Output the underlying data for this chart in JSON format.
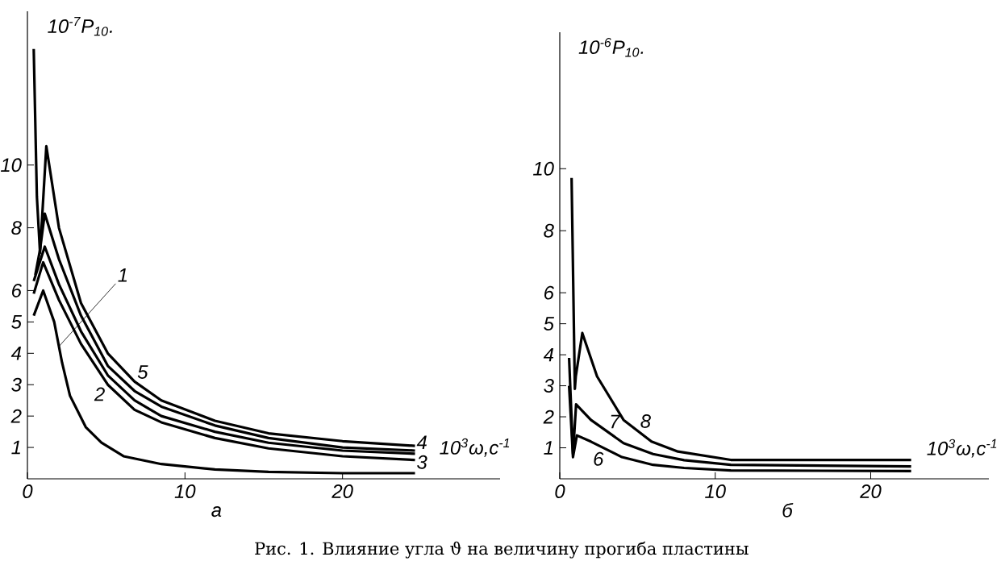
{
  "chart_data": [
    {
      "type": "line",
      "title": "а",
      "xlabel": "10$^{3}$ω,с$^{-1}$",
      "ylabel": "10$^{-7}$P$_{10}$.",
      "xlim": [
        0,
        30
      ],
      "ylim": [
        0,
        14.9
      ],
      "xticks": [
        0,
        10,
        20
      ],
      "yticks": [
        1,
        2,
        3,
        4,
        5,
        6,
        8,
        10
      ],
      "grid": false,
      "annotations": [
        "Рис. 1. Влияние угла ϑ на величину прогиба пластины"
      ],
      "series": [
        {
          "name": "1",
          "color": "#000000",
          "x": [
            0.4,
            1.0,
            1.7,
            2.2,
            2.7,
            3.7,
            4.7,
            6.1,
            8.5,
            11.9,
            15.3,
            20,
            24.6
          ],
          "values": [
            5.2,
            6.0,
            5.0,
            3.7,
            2.65,
            1.65,
            1.15,
            0.72,
            0.47,
            0.3,
            0.22,
            0.18,
            0.18
          ]
        },
        {
          "name": "2",
          "color": "#000000",
          "x": [
            0.4,
            1.0,
            2.0,
            3.4,
            5.1,
            6.8,
            8.5,
            11.9,
            15.3,
            20,
            24.6
          ],
          "values": [
            5.9,
            6.9,
            5.7,
            4.3,
            3.0,
            2.2,
            1.8,
            1.3,
            0.97,
            0.72,
            0.6
          ]
        },
        {
          "name": "3",
          "color": "#000000",
          "x": [
            0.4,
            1.1,
            2.0,
            3.4,
            5.1,
            6.8,
            8.5,
            11.9,
            15.3,
            20,
            24.6
          ],
          "values": [
            6.3,
            7.4,
            6.2,
            4.7,
            3.3,
            2.5,
            2.0,
            1.5,
            1.15,
            0.9,
            0.8
          ]
        },
        {
          "name": "4",
          "color": "#000000",
          "x": [
            0.5,
            0.8,
            1.1,
            2.0,
            3.4,
            5.1,
            6.8,
            8.5,
            11.9,
            15.3,
            20,
            24.6
          ],
          "values": [
            6.5,
            7.3,
            8.45,
            7.0,
            5.2,
            3.6,
            2.8,
            2.3,
            1.7,
            1.3,
            1.0,
            0.9
          ]
        },
        {
          "name": "5",
          "color": "#000000",
          "x": [
            0.4,
            0.6,
            0.8,
            1.2,
            2.0,
            3.4,
            5.1,
            6.8,
            8.5,
            11.9,
            15.3,
            20,
            24.6
          ],
          "values": [
            13.7,
            9.0,
            7.2,
            10.6,
            8.0,
            5.6,
            4.0,
            3.1,
            2.5,
            1.85,
            1.45,
            1.2,
            1.05
          ]
        }
      ]
    },
    {
      "type": "line",
      "title": "б",
      "xlabel": "10$^{3}$ω,с$^{-1}$",
      "ylabel": "10$^{-6}$P$_{10}$.",
      "xlim": [
        0,
        27.6
      ],
      "ylim": [
        0,
        14.4
      ],
      "xticks": [
        0,
        10,
        20
      ],
      "yticks": [
        1,
        2,
        3,
        4,
        5,
        6,
        8,
        10
      ],
      "grid": false,
      "series": [
        {
          "name": "6",
          "color": "#000000",
          "x": [
            0.6,
            0.85,
            1.1,
            2.0,
            4.0,
            6.0,
            8.0,
            11.0,
            22.6
          ],
          "values": [
            3.0,
            0.7,
            1.4,
            1.2,
            0.7,
            0.45,
            0.35,
            0.27,
            0.25
          ]
        },
        {
          "name": "7",
          "color": "#000000",
          "x": [
            0.6,
            0.85,
            1.05,
            2.0,
            4.1,
            6.0,
            8.0,
            11.0,
            22.6
          ],
          "values": [
            3.9,
            0.8,
            2.4,
            1.9,
            1.15,
            0.8,
            0.6,
            0.45,
            0.4
          ]
        },
        {
          "name": "8",
          "color": "#000000",
          "x": [
            0.76,
            0.97,
            1.03,
            1.45,
            2.4,
            4.1,
            5.9,
            7.6,
            11.0,
            14.5,
            22.6
          ],
          "values": [
            9.7,
            2.9,
            3.3,
            4.7,
            3.3,
            1.9,
            1.2,
            0.88,
            0.61,
            0.61,
            0.61
          ]
        }
      ]
    }
  ]
}
